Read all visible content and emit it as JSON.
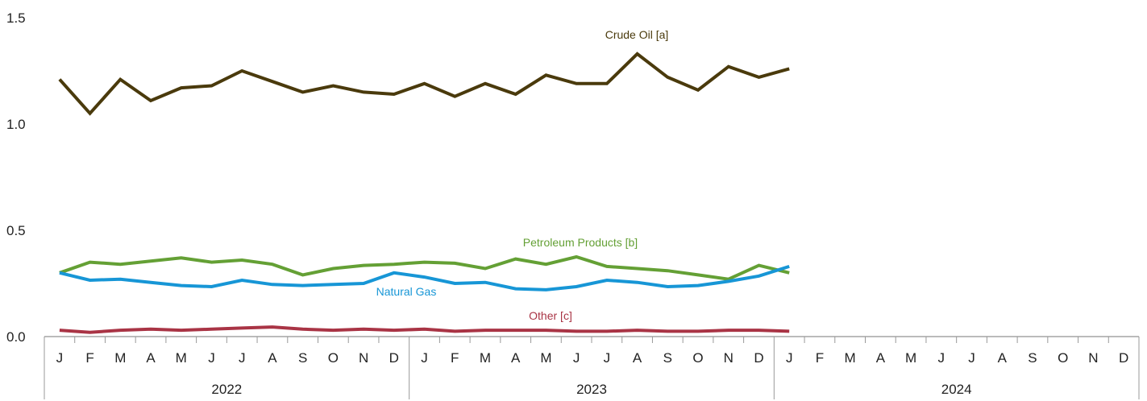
{
  "chart_data": {
    "type": "line",
    "title": "",
    "xlabel": "",
    "ylabel": "",
    "ylim": [
      0,
      1.5
    ],
    "y_ticks": [
      "1.5",
      "1.0",
      "0.5",
      "0.0"
    ],
    "grid": false,
    "month_labels": [
      "J",
      "F",
      "M",
      "A",
      "M",
      "J",
      "J",
      "A",
      "S",
      "O",
      "N",
      "D",
      "J",
      "F",
      "M",
      "A",
      "M",
      "J",
      "J",
      "A",
      "S",
      "O",
      "N",
      "D",
      "J",
      "F",
      "M",
      "A",
      "M",
      "J",
      "J",
      "A",
      "S",
      "O",
      "N",
      "D"
    ],
    "years": [
      "2022",
      "2023",
      "2024"
    ],
    "series": [
      {
        "name": "Crude Oil [a]",
        "color": "#4a3a0c",
        "values": [
          1.21,
          1.05,
          1.21,
          1.11,
          1.17,
          1.18,
          1.25,
          1.2,
          1.15,
          1.18,
          1.15,
          1.14,
          1.19,
          1.13,
          1.19,
          1.14,
          1.23,
          1.19,
          1.19,
          1.33,
          1.22,
          1.16,
          1.27,
          1.22,
          1.26
        ]
      },
      {
        "name": "Petroleum Products [b]",
        "color": "#64a035",
        "values": [
          0.3,
          0.35,
          0.34,
          0.355,
          0.37,
          0.35,
          0.36,
          0.34,
          0.29,
          0.32,
          0.335,
          0.34,
          0.35,
          0.345,
          0.32,
          0.365,
          0.34,
          0.375,
          0.33,
          0.32,
          0.31,
          0.29,
          0.27,
          0.335,
          0.3
        ]
      },
      {
        "name": "Natural Gas",
        "color": "#1796d6",
        "values": [
          0.3,
          0.265,
          0.27,
          0.255,
          0.24,
          0.235,
          0.265,
          0.245,
          0.24,
          0.245,
          0.25,
          0.3,
          0.28,
          0.25,
          0.255,
          0.225,
          0.22,
          0.235,
          0.265,
          0.255,
          0.235,
          0.24,
          0.26,
          0.285,
          0.33
        ]
      },
      {
        "name": "Other [c]",
        "color": "#a93445",
        "values": [
          0.03,
          0.02,
          0.03,
          0.035,
          0.03,
          0.035,
          0.04,
          0.045,
          0.035,
          0.03,
          0.035,
          0.03,
          0.035,
          0.025,
          0.03,
          0.03,
          0.03,
          0.025,
          0.025,
          0.03,
          0.025,
          0.025,
          0.03,
          0.03,
          0.025
        ]
      }
    ]
  }
}
